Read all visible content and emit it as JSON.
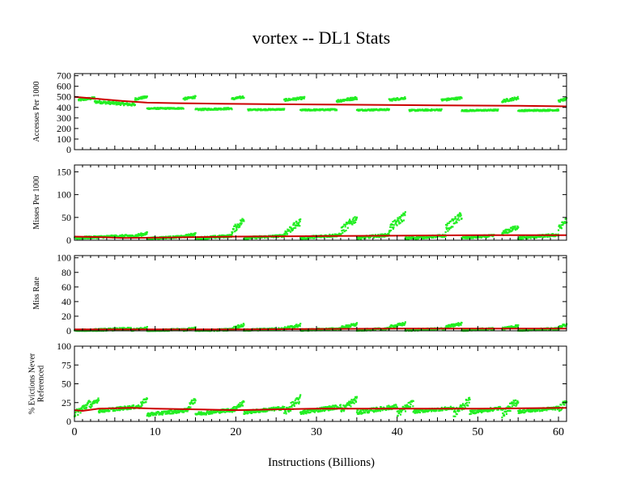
{
  "chart_data": {
    "title": "vortex -- DL1  Stats",
    "xlabel": "Instructions (Billions)",
    "xlim": [
      0,
      61
    ],
    "xticks": [
      0,
      10,
      20,
      30,
      40,
      50,
      60
    ],
    "colors": {
      "green": "#22ee22",
      "red": "#cc0000"
    },
    "panels": [
      {
        "type": "scatter",
        "ylabel": [
          "Accesses Per 1000"
        ],
        "ylim": [
          0,
          720
        ],
        "yticks": [
          0,
          100,
          200,
          300,
          400,
          500,
          600,
          700
        ],
        "green_segments": [
          [
            0.5,
            2.5,
            470,
            490
          ],
          [
            2.5,
            7.5,
            455,
            425
          ],
          [
            7.5,
            9,
            480,
            500
          ],
          [
            9,
            13.5,
            390,
            392
          ],
          [
            13.5,
            15,
            480,
            500
          ],
          [
            15,
            19.5,
            380,
            390
          ],
          [
            19.5,
            21,
            480,
            500
          ],
          [
            21.5,
            26,
            378,
            382
          ],
          [
            26,
            28.5,
            470,
            490
          ],
          [
            28,
            32.5,
            375,
            380
          ],
          [
            32.5,
            35,
            460,
            490
          ],
          [
            35,
            39,
            375,
            380
          ],
          [
            39,
            41,
            470,
            490
          ],
          [
            41.5,
            45.5,
            372,
            378
          ],
          [
            45.5,
            48,
            470,
            490
          ],
          [
            48,
            52.5,
            370,
            375
          ],
          [
            53,
            55,
            460,
            490
          ],
          [
            55,
            60,
            370,
            375
          ],
          [
            60,
            61,
            460,
            480
          ]
        ],
        "red": [
          [
            0,
            500
          ],
          [
            3,
            480
          ],
          [
            6,
            460
          ],
          [
            9,
            445
          ],
          [
            13,
            440
          ],
          [
            18,
            435
          ],
          [
            25,
            430
          ],
          [
            35,
            425
          ],
          [
            45,
            420
          ],
          [
            55,
            415
          ],
          [
            61,
            410
          ]
        ]
      },
      {
        "type": "scatter",
        "ylabel": [
          "Misses Per 1000"
        ],
        "ylim": [
          0,
          165
        ],
        "yticks": [
          0,
          50,
          100,
          150
        ],
        "green_segments": [
          [
            0,
            7,
            5,
            10
          ],
          [
            7,
            9,
            8,
            15
          ],
          [
            9,
            13.5,
            4,
            8
          ],
          [
            13.5,
            15,
            8,
            14
          ],
          [
            15,
            19.5,
            4,
            10
          ],
          [
            19.5,
            21,
            20,
            45
          ],
          [
            21,
            26,
            5,
            10
          ],
          [
            26,
            28,
            15,
            40
          ],
          [
            28,
            33,
            5,
            12
          ],
          [
            33,
            35,
            20,
            50
          ],
          [
            35,
            39,
            5,
            12
          ],
          [
            39,
            41,
            25,
            55
          ],
          [
            41,
            46,
            4,
            10
          ],
          [
            46,
            48,
            25,
            55
          ],
          [
            48,
            52,
            5,
            10
          ],
          [
            53,
            55,
            15,
            30
          ],
          [
            55,
            60,
            5,
            12
          ],
          [
            60,
            61,
            25,
            45
          ]
        ],
        "red": [
          [
            0,
            8
          ],
          [
            3,
            7
          ],
          [
            6,
            5
          ],
          [
            12,
            6
          ],
          [
            20,
            8
          ],
          [
            30,
            9
          ],
          [
            40,
            10
          ],
          [
            50,
            11
          ],
          [
            61,
            11
          ]
        ]
      },
      {
        "type": "scatter",
        "ylabel": [
          "Miss Rate"
        ],
        "ylim": [
          0,
          103
        ],
        "yticks": [
          0,
          20,
          40,
          60,
          80,
          100
        ],
        "green_segments": [
          [
            0,
            7,
            0,
            3
          ],
          [
            7,
            9,
            1,
            4
          ],
          [
            9,
            13.5,
            0,
            2
          ],
          [
            13.5,
            15,
            1,
            4
          ],
          [
            15,
            19.5,
            0,
            2
          ],
          [
            19.5,
            21,
            3,
            8
          ],
          [
            21,
            26,
            1,
            3
          ],
          [
            26,
            28,
            3,
            8
          ],
          [
            28,
            33,
            1,
            3
          ],
          [
            33,
            35,
            4,
            9
          ],
          [
            35,
            39,
            1,
            3
          ],
          [
            39,
            41,
            5,
            10
          ],
          [
            41,
            46,
            1,
            3
          ],
          [
            46,
            48,
            5,
            10
          ],
          [
            48,
            52,
            1,
            3
          ],
          [
            53,
            55,
            3,
            7
          ],
          [
            55,
            60,
            1,
            3
          ],
          [
            60,
            61,
            4,
            9
          ]
        ],
        "red": [
          [
            0,
            2
          ],
          [
            10,
            2
          ],
          [
            20,
            2
          ],
          [
            30,
            2.5
          ],
          [
            40,
            3
          ],
          [
            50,
            3
          ],
          [
            61,
            3
          ]
        ]
      },
      {
        "type": "scatter",
        "ylabel": [
          "% Evictions Never",
          "Referenced"
        ],
        "ylim": [
          0,
          100
        ],
        "yticks": [
          0,
          25,
          50,
          75,
          100
        ],
        "green_segments": [
          [
            0,
            2,
            10,
            25
          ],
          [
            2,
            3,
            20,
            30
          ],
          [
            3,
            8,
            14,
            20
          ],
          [
            8,
            9,
            20,
            30
          ],
          [
            9,
            14,
            9,
            15
          ],
          [
            14,
            15,
            18,
            30
          ],
          [
            15,
            20,
            10,
            16
          ],
          [
            19.5,
            21,
            15,
            25
          ],
          [
            21,
            26,
            12,
            18
          ],
          [
            26,
            28,
            12,
            30
          ],
          [
            28,
            33,
            12,
            20
          ],
          [
            33,
            35,
            15,
            30
          ],
          [
            35,
            40,
            12,
            20
          ],
          [
            40,
            42,
            10,
            25
          ],
          [
            42,
            47,
            13,
            18
          ],
          [
            47,
            49,
            10,
            28
          ],
          [
            49,
            53,
            12,
            18
          ],
          [
            53,
            55,
            10,
            28
          ],
          [
            55,
            60,
            13,
            18
          ],
          [
            60,
            61,
            15,
            30
          ]
        ],
        "red": [
          [
            0,
            15
          ],
          [
            1,
            14
          ],
          [
            3,
            17
          ],
          [
            7,
            18
          ],
          [
            10,
            17
          ],
          [
            15,
            16
          ],
          [
            20,
            15
          ],
          [
            25,
            16
          ],
          [
            30,
            17
          ],
          [
            40,
            17
          ],
          [
            50,
            17
          ],
          [
            61,
            18
          ]
        ]
      }
    ]
  }
}
